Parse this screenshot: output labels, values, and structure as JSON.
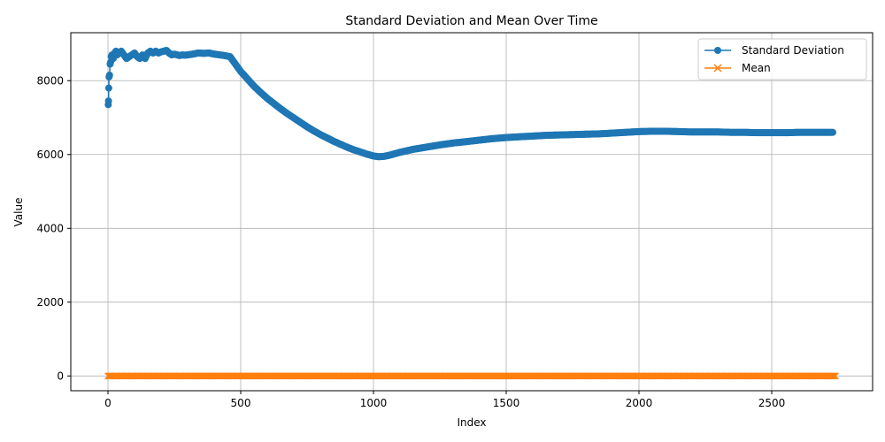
{
  "chart_data": {
    "type": "line",
    "title": "Standard Deviation and Mean Over Time",
    "xlabel": "Index",
    "ylabel": "Value",
    "xlim": [
      -140,
      2880
    ],
    "ylim": [
      -400,
      9300
    ],
    "xticks": [
      0,
      500,
      1000,
      1500,
      2000,
      2500
    ],
    "yticks": [
      0,
      2000,
      4000,
      6000,
      8000
    ],
    "grid": true,
    "legend_position": "top-right",
    "series": [
      {
        "name": "Standard Deviation",
        "color": "#1f77b4",
        "marker": "circle",
        "x": [
          1,
          2,
          3,
          4,
          6,
          8,
          10,
          12,
          15,
          20,
          25,
          30,
          35,
          40,
          50,
          60,
          70,
          80,
          90,
          100,
          110,
          120,
          130,
          140,
          150,
          160,
          170,
          180,
          190,
          200,
          210,
          220,
          230,
          240,
          250,
          260,
          270,
          280,
          290,
          300,
          320,
          340,
          360,
          380,
          400,
          420,
          440,
          460,
          470,
          480,
          490,
          500,
          525,
          550,
          575,
          600,
          625,
          650,
          675,
          700,
          725,
          750,
          775,
          800,
          825,
          850,
          875,
          900,
          925,
          950,
          975,
          1000,
          1020,
          1040,
          1060,
          1080,
          1100,
          1150,
          1200,
          1250,
          1300,
          1350,
          1400,
          1450,
          1500,
          1550,
          1600,
          1650,
          1700,
          1750,
          1800,
          1850,
          1900,
          1950,
          2000,
          2050,
          2100,
          2150,
          2200,
          2250,
          2300,
          2350,
          2400,
          2450,
          2500,
          2550,
          2600,
          2650,
          2700,
          2730
        ],
        "y": [
          7350,
          7450,
          7800,
          8100,
          8150,
          8450,
          8500,
          8650,
          8700,
          8600,
          8750,
          8800,
          8700,
          8750,
          8800,
          8700,
          8600,
          8650,
          8700,
          8750,
          8650,
          8600,
          8700,
          8600,
          8750,
          8800,
          8750,
          8800,
          8750,
          8780,
          8800,
          8820,
          8750,
          8700,
          8720,
          8700,
          8680,
          8700,
          8690,
          8700,
          8720,
          8750,
          8740,
          8750,
          8720,
          8700,
          8680,
          8650,
          8550,
          8450,
          8350,
          8250,
          8050,
          7850,
          7680,
          7520,
          7380,
          7240,
          7110,
          6990,
          6870,
          6750,
          6640,
          6540,
          6450,
          6360,
          6280,
          6200,
          6130,
          6070,
          6010,
          5960,
          5940,
          5950,
          5980,
          6020,
          6060,
          6140,
          6200,
          6260,
          6310,
          6350,
          6390,
          6430,
          6460,
          6480,
          6500,
          6520,
          6530,
          6540,
          6550,
          6560,
          6580,
          6600,
          6620,
          6630,
          6630,
          6620,
          6610,
          6610,
          6610,
          6600,
          6600,
          6590,
          6590,
          6590,
          6600,
          6600,
          6600,
          6600
        ]
      },
      {
        "name": "Mean",
        "color": "#ff7f0e",
        "marker": "x",
        "x": [
          0,
          2740
        ],
        "y": [
          0,
          0
        ]
      }
    ]
  }
}
